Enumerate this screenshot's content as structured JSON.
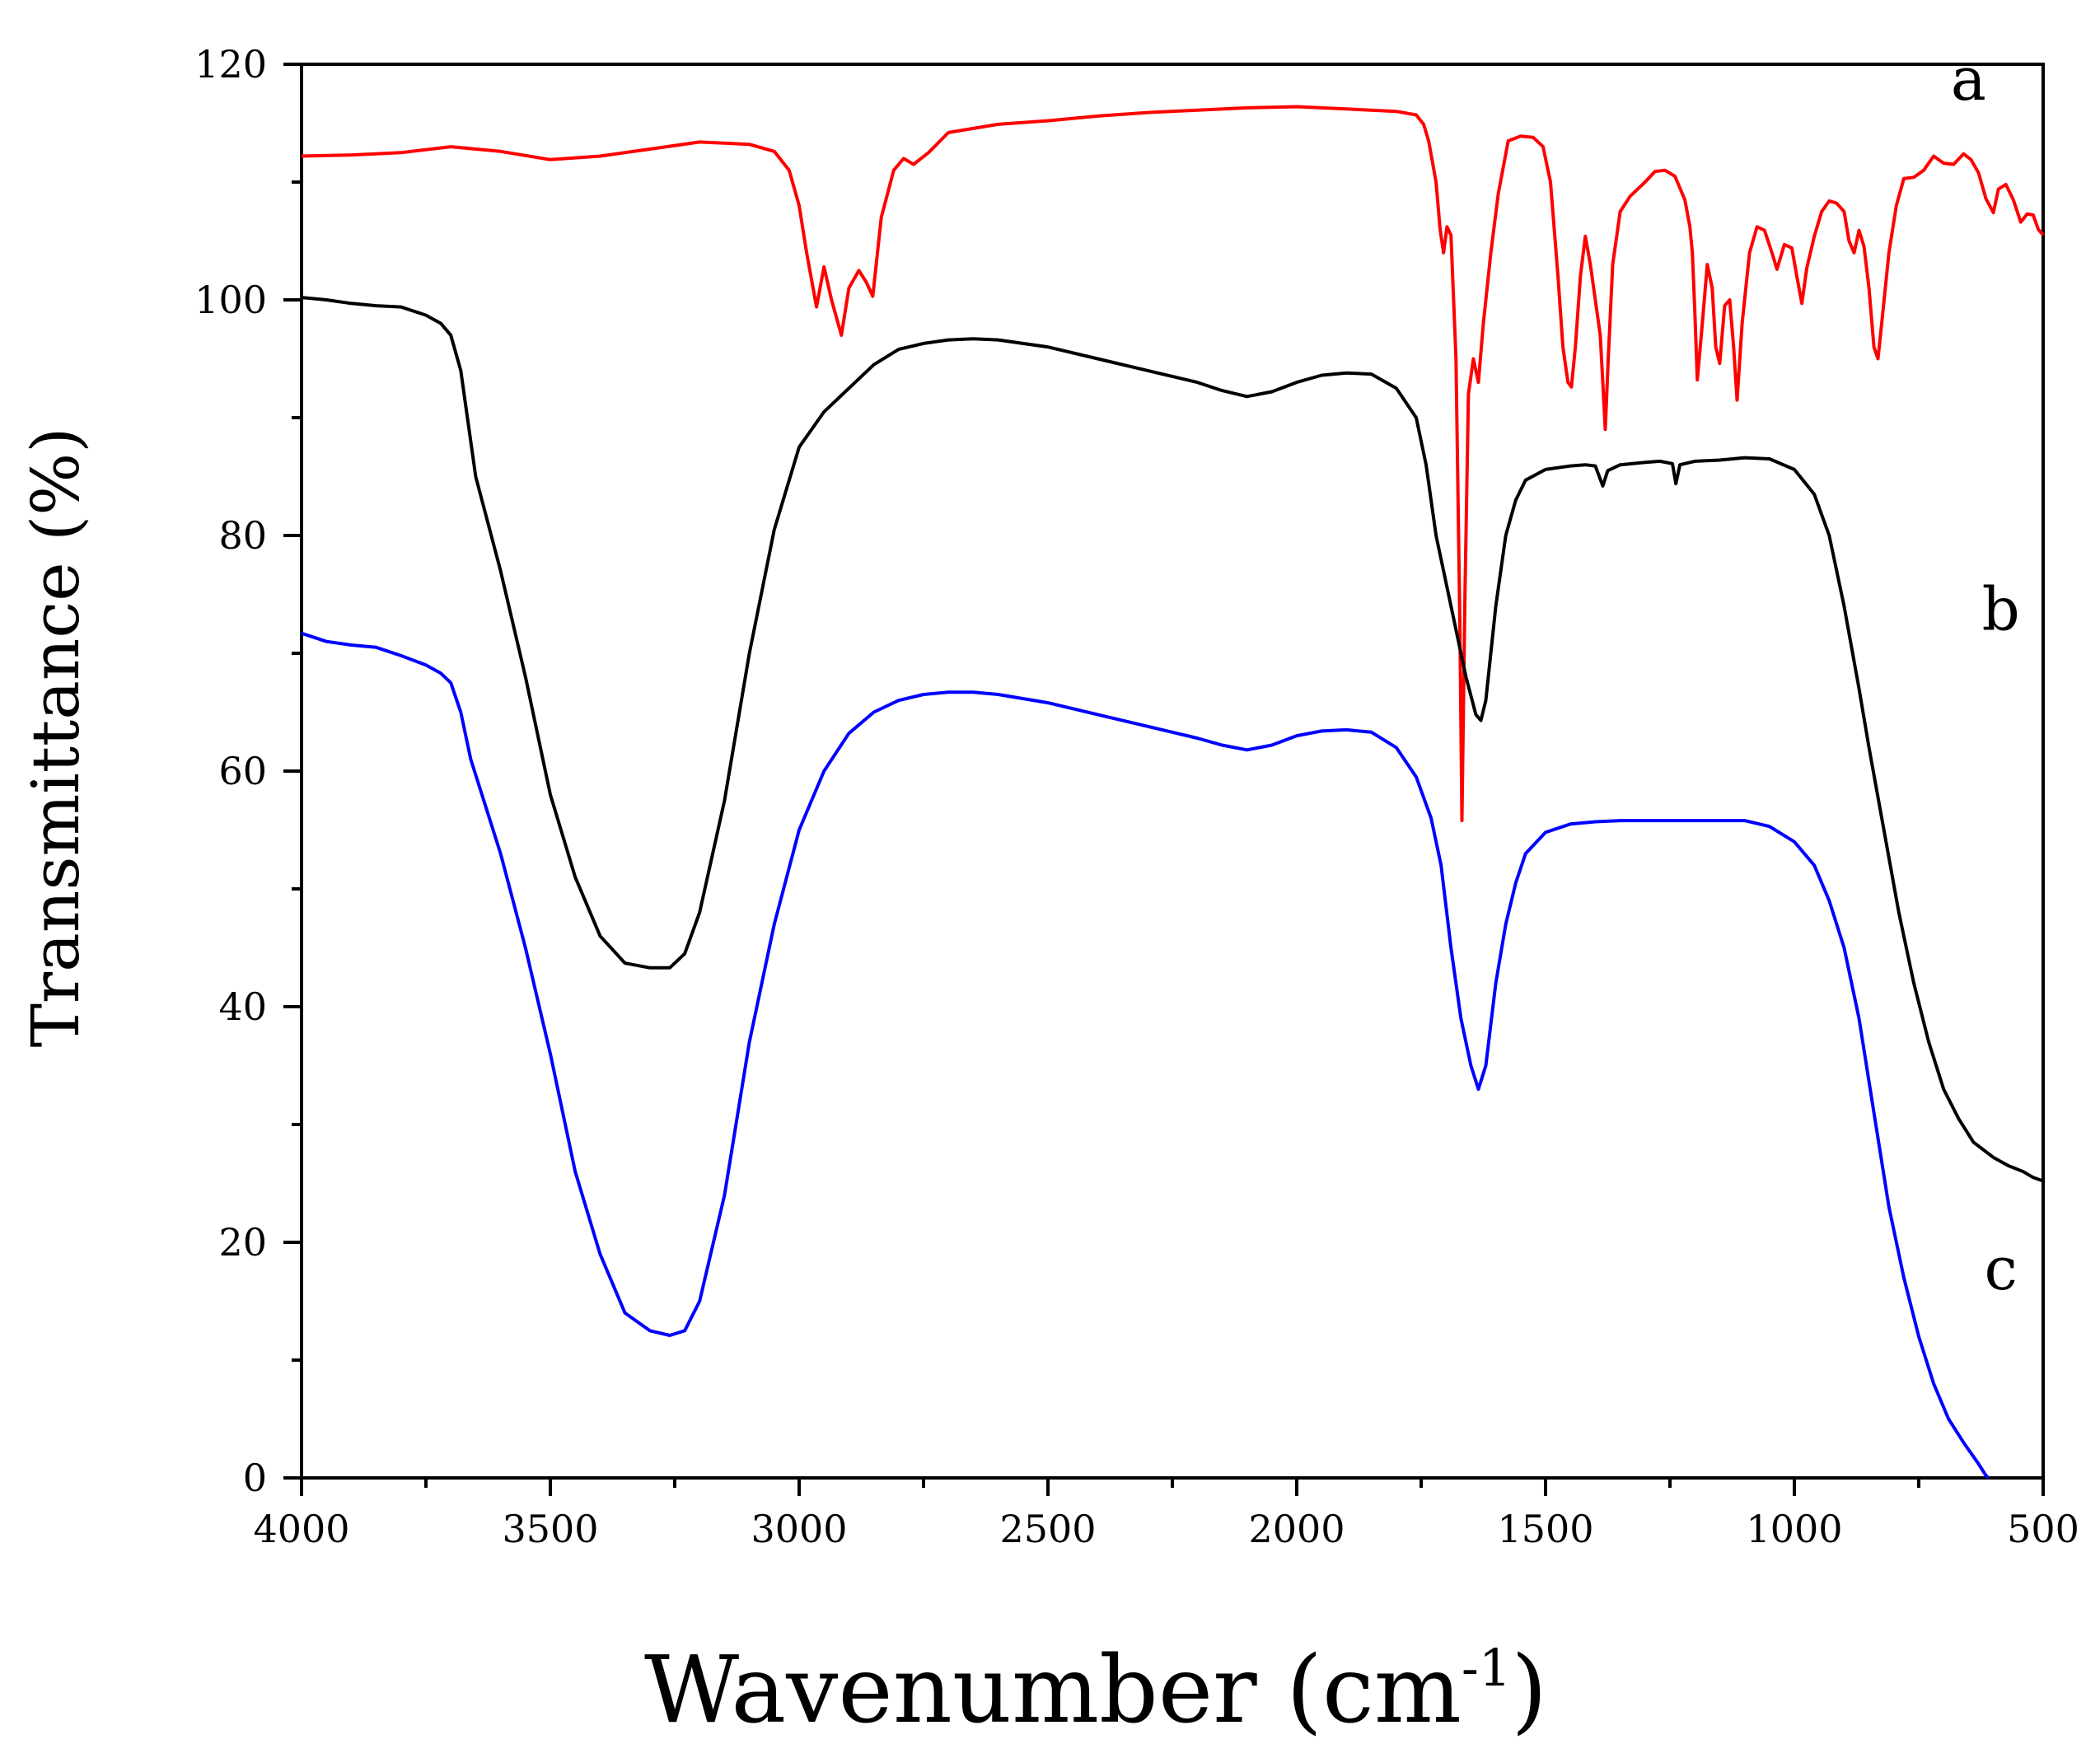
{
  "chart_data": {
    "type": "line",
    "title": "",
    "xlabel": "Wavenumber (cm",
    "xlabel_sup": "-1",
    "xlabel_end": ")",
    "ylabel": "Transmittance (%)",
    "xlim": [
      4000,
      500
    ],
    "ylim": [
      0,
      120
    ],
    "x_ticks": [
      4000,
      3500,
      3000,
      2500,
      2000,
      1500,
      1000,
      500
    ],
    "x_tick_labels": [
      "4000",
      "3500",
      "3000",
      "2500",
      "2000",
      "1500",
      "1000",
      "500"
    ],
    "y_ticks": [
      0,
      20,
      40,
      60,
      80,
      100,
      120
    ],
    "y_tick_labels": [
      "0",
      "20",
      "40",
      "60",
      "80",
      "100",
      "120"
    ],
    "grid": false,
    "series": [
      {
        "name": "a",
        "color": "#ff0000",
        "label_pos": [
          650,
          117
        ],
        "points": [
          [
            4000,
            112.2
          ],
          [
            3900,
            112.3
          ],
          [
            3800,
            112.5
          ],
          [
            3700,
            113.0
          ],
          [
            3600,
            112.6
          ],
          [
            3500,
            111.9
          ],
          [
            3400,
            112.2
          ],
          [
            3300,
            112.8
          ],
          [
            3200,
            113.4
          ],
          [
            3100,
            113.2
          ],
          [
            3050,
            112.6
          ],
          [
            3020,
            111.0
          ],
          [
            3000,
            108.0
          ],
          [
            2985,
            104.0
          ],
          [
            2965,
            99.4
          ],
          [
            2950,
            102.8
          ],
          [
            2935,
            100.0
          ],
          [
            2915,
            97.0
          ],
          [
            2900,
            101.0
          ],
          [
            2880,
            102.5
          ],
          [
            2865,
            101.5
          ],
          [
            2852,
            100.3
          ],
          [
            2835,
            107.0
          ],
          [
            2810,
            111.0
          ],
          [
            2790,
            112.0
          ],
          [
            2770,
            111.5
          ],
          [
            2740,
            112.5
          ],
          [
            2700,
            114.2
          ],
          [
            2600,
            114.9
          ],
          [
            2500,
            115.2
          ],
          [
            2400,
            115.6
          ],
          [
            2300,
            115.9
          ],
          [
            2200,
            116.1
          ],
          [
            2100,
            116.3
          ],
          [
            2000,
            116.4
          ],
          [
            1900,
            116.2
          ],
          [
            1800,
            116.0
          ],
          [
            1760,
            115.7
          ],
          [
            1745,
            114.9
          ],
          [
            1735,
            113.5
          ],
          [
            1720,
            110.0
          ],
          [
            1712,
            106.0
          ],
          [
            1705,
            104.0
          ],
          [
            1698,
            106.2
          ],
          [
            1690,
            105.5
          ],
          [
            1680,
            95.0
          ],
          [
            1672,
            72.0
          ],
          [
            1668,
            55.8
          ],
          [
            1662,
            75.0
          ],
          [
            1655,
            92.0
          ],
          [
            1645,
            95.0
          ],
          [
            1635,
            93.0
          ],
          [
            1625,
            98.0
          ],
          [
            1610,
            104.0
          ],
          [
            1595,
            109.0
          ],
          [
            1575,
            113.5
          ],
          [
            1550,
            113.9
          ],
          [
            1525,
            113.8
          ],
          [
            1505,
            113.0
          ],
          [
            1490,
            110.0
          ],
          [
            1475,
            102.0
          ],
          [
            1465,
            96.0
          ],
          [
            1455,
            93.0
          ],
          [
            1448,
            92.6
          ],
          [
            1440,
            96.0
          ],
          [
            1430,
            102.0
          ],
          [
            1420,
            105.4
          ],
          [
            1410,
            103.0
          ],
          [
            1400,
            100.0
          ],
          [
            1390,
            97.0
          ],
          [
            1385,
            93.0
          ],
          [
            1380,
            89.0
          ],
          [
            1374,
            95.0
          ],
          [
            1365,
            103.0
          ],
          [
            1350,
            107.5
          ],
          [
            1330,
            108.8
          ],
          [
            1300,
            110.0
          ],
          [
            1280,
            110.9
          ],
          [
            1260,
            111.0
          ],
          [
            1240,
            110.5
          ],
          [
            1220,
            108.5
          ],
          [
            1210,
            106.2
          ],
          [
            1205,
            104.0
          ],
          [
            1200,
            99.0
          ],
          [
            1195,
            93.2
          ],
          [
            1185,
            98.0
          ],
          [
            1175,
            103.0
          ],
          [
            1165,
            101.0
          ],
          [
            1158,
            96.0
          ],
          [
            1150,
            94.6
          ],
          [
            1140,
            99.5
          ],
          [
            1130,
            100.0
          ],
          [
            1122,
            96.0
          ],
          [
            1115,
            91.5
          ],
          [
            1105,
            98.0
          ],
          [
            1090,
            104.0
          ],
          [
            1075,
            106.2
          ],
          [
            1060,
            105.9
          ],
          [
            1045,
            104.0
          ],
          [
            1035,
            102.6
          ],
          [
            1020,
            104.7
          ],
          [
            1005,
            104.4
          ],
          [
            995,
            102.0
          ],
          [
            985,
            99.7
          ],
          [
            975,
            102.7
          ],
          [
            960,
            105.4
          ],
          [
            945,
            107.5
          ],
          [
            930,
            108.4
          ],
          [
            915,
            108.2
          ],
          [
            900,
            107.5
          ],
          [
            890,
            105.0
          ],
          [
            880,
            104.0
          ],
          [
            870,
            105.9
          ],
          [
            860,
            104.5
          ],
          [
            850,
            101.0
          ],
          [
            840,
            96.0
          ],
          [
            832,
            95.0
          ],
          [
            822,
            99.0
          ],
          [
            810,
            104.0
          ],
          [
            795,
            108.0
          ],
          [
            780,
            110.3
          ],
          [
            760,
            110.4
          ],
          [
            740,
            111.0
          ],
          [
            720,
            112.2
          ],
          [
            700,
            111.6
          ],
          [
            680,
            111.5
          ],
          [
            660,
            112.4
          ],
          [
            645,
            111.9
          ],
          [
            630,
            110.8
          ],
          [
            615,
            108.6
          ],
          [
            600,
            107.4
          ],
          [
            590,
            109.4
          ],
          [
            575,
            109.8
          ],
          [
            560,
            108.5
          ],
          [
            545,
            106.6
          ],
          [
            532,
            107.3
          ],
          [
            520,
            107.2
          ],
          [
            510,
            106.0
          ],
          [
            500,
            105.5
          ]
        ]
      },
      {
        "name": "b",
        "color": "#000000",
        "label_pos": [
          585,
          72
        ],
        "points": [
          [
            4000,
            100.2
          ],
          [
            3950,
            100.0
          ],
          [
            3900,
            99.7
          ],
          [
            3850,
            99.5
          ],
          [
            3800,
            99.4
          ],
          [
            3750,
            98.7
          ],
          [
            3720,
            98.0
          ],
          [
            3700,
            97.0
          ],
          [
            3680,
            94.0
          ],
          [
            3650,
            85.0
          ],
          [
            3600,
            77.0
          ],
          [
            3550,
            68.0
          ],
          [
            3500,
            58.0
          ],
          [
            3450,
            51.0
          ],
          [
            3400,
            46.0
          ],
          [
            3350,
            43.7
          ],
          [
            3300,
            43.3
          ],
          [
            3260,
            43.3
          ],
          [
            3230,
            44.5
          ],
          [
            3200,
            48.0
          ],
          [
            3150,
            57.5
          ],
          [
            3100,
            70.0
          ],
          [
            3050,
            80.5
          ],
          [
            3000,
            87.5
          ],
          [
            2950,
            90.5
          ],
          [
            2900,
            92.5
          ],
          [
            2850,
            94.5
          ],
          [
            2800,
            95.8
          ],
          [
            2750,
            96.3
          ],
          [
            2700,
            96.6
          ],
          [
            2650,
            96.7
          ],
          [
            2600,
            96.6
          ],
          [
            2500,
            96.0
          ],
          [
            2400,
            95.0
          ],
          [
            2300,
            94.0
          ],
          [
            2200,
            93.0
          ],
          [
            2150,
            92.3
          ],
          [
            2100,
            91.8
          ],
          [
            2050,
            92.2
          ],
          [
            2000,
            93.0
          ],
          [
            1950,
            93.6
          ],
          [
            1900,
            93.8
          ],
          [
            1850,
            93.7
          ],
          [
            1800,
            92.5
          ],
          [
            1760,
            90.0
          ],
          [
            1740,
            86.0
          ],
          [
            1720,
            80.0
          ],
          [
            1700,
            76.0
          ],
          [
            1680,
            72.0
          ],
          [
            1660,
            68.0
          ],
          [
            1640,
            64.8
          ],
          [
            1630,
            64.3
          ],
          [
            1620,
            66.0
          ],
          [
            1600,
            74.0
          ],
          [
            1580,
            80.0
          ],
          [
            1560,
            83.0
          ],
          [
            1540,
            84.7
          ],
          [
            1500,
            85.6
          ],
          [
            1450,
            85.9
          ],
          [
            1420,
            86.0
          ],
          [
            1400,
            85.9
          ],
          [
            1385,
            84.2
          ],
          [
            1375,
            85.5
          ],
          [
            1350,
            86.0
          ],
          [
            1300,
            86.2
          ],
          [
            1270,
            86.3
          ],
          [
            1245,
            86.1
          ],
          [
            1238,
            84.4
          ],
          [
            1230,
            86.0
          ],
          [
            1200,
            86.3
          ],
          [
            1150,
            86.4
          ],
          [
            1100,
            86.6
          ],
          [
            1050,
            86.5
          ],
          [
            1000,
            85.6
          ],
          [
            960,
            83.5
          ],
          [
            930,
            80.0
          ],
          [
            900,
            74.0
          ],
          [
            870,
            67.0
          ],
          [
            850,
            62.0
          ],
          [
            820,
            55.0
          ],
          [
            790,
            48.0
          ],
          [
            760,
            42.0
          ],
          [
            730,
            37.0
          ],
          [
            700,
            33.0
          ],
          [
            670,
            30.5
          ],
          [
            640,
            28.5
          ],
          [
            600,
            27.2
          ],
          [
            570,
            26.5
          ],
          [
            540,
            26.0
          ],
          [
            520,
            25.5
          ],
          [
            500,
            25.2
          ]
        ]
      },
      {
        "name": "c",
        "color": "#0000ff",
        "label_pos": [
          585,
          16
        ],
        "points": [
          [
            4000,
            71.7
          ],
          [
            3950,
            71.0
          ],
          [
            3900,
            70.7
          ],
          [
            3850,
            70.5
          ],
          [
            3800,
            69.8
          ],
          [
            3750,
            69.0
          ],
          [
            3720,
            68.3
          ],
          [
            3700,
            67.5
          ],
          [
            3680,
            65.0
          ],
          [
            3660,
            61.0
          ],
          [
            3600,
            53.0
          ],
          [
            3550,
            45.0
          ],
          [
            3500,
            36.0
          ],
          [
            3450,
            26.0
          ],
          [
            3400,
            19.0
          ],
          [
            3350,
            14.0
          ],
          [
            3300,
            12.5
          ],
          [
            3260,
            12.1
          ],
          [
            3230,
            12.5
          ],
          [
            3200,
            15.0
          ],
          [
            3150,
            24.0
          ],
          [
            3100,
            37.0
          ],
          [
            3050,
            47.0
          ],
          [
            3000,
            55.0
          ],
          [
            2950,
            60.0
          ],
          [
            2900,
            63.2
          ],
          [
            2850,
            65.0
          ],
          [
            2800,
            66.0
          ],
          [
            2750,
            66.5
          ],
          [
            2700,
            66.7
          ],
          [
            2650,
            66.7
          ],
          [
            2600,
            66.5
          ],
          [
            2500,
            65.8
          ],
          [
            2400,
            64.8
          ],
          [
            2300,
            63.8
          ],
          [
            2200,
            62.8
          ],
          [
            2150,
            62.2
          ],
          [
            2100,
            61.8
          ],
          [
            2050,
            62.2
          ],
          [
            2000,
            63.0
          ],
          [
            1950,
            63.4
          ],
          [
            1900,
            63.5
          ],
          [
            1850,
            63.3
          ],
          [
            1800,
            62.0
          ],
          [
            1760,
            59.5
          ],
          [
            1730,
            56.0
          ],
          [
            1710,
            52.0
          ],
          [
            1690,
            45.0
          ],
          [
            1670,
            39.0
          ],
          [
            1650,
            35.0
          ],
          [
            1635,
            33.0
          ],
          [
            1620,
            35.0
          ],
          [
            1600,
            42.0
          ],
          [
            1580,
            47.0
          ],
          [
            1560,
            50.5
          ],
          [
            1540,
            53.0
          ],
          [
            1500,
            54.8
          ],
          [
            1450,
            55.5
          ],
          [
            1400,
            55.7
          ],
          [
            1350,
            55.8
          ],
          [
            1300,
            55.8
          ],
          [
            1250,
            55.8
          ],
          [
            1200,
            55.8
          ],
          [
            1150,
            55.8
          ],
          [
            1100,
            55.8
          ],
          [
            1050,
            55.3
          ],
          [
            1000,
            54.0
          ],
          [
            960,
            52.0
          ],
          [
            930,
            49.0
          ],
          [
            900,
            45.0
          ],
          [
            870,
            39.0
          ],
          [
            840,
            31.0
          ],
          [
            810,
            23.0
          ],
          [
            780,
            17.0
          ],
          [
            750,
            12.0
          ],
          [
            720,
            8.0
          ],
          [
            690,
            5.0
          ],
          [
            660,
            3.0
          ],
          [
            630,
            1.2
          ],
          [
            615,
            0.2
          ],
          [
            610,
            0.0
          ]
        ]
      }
    ]
  }
}
